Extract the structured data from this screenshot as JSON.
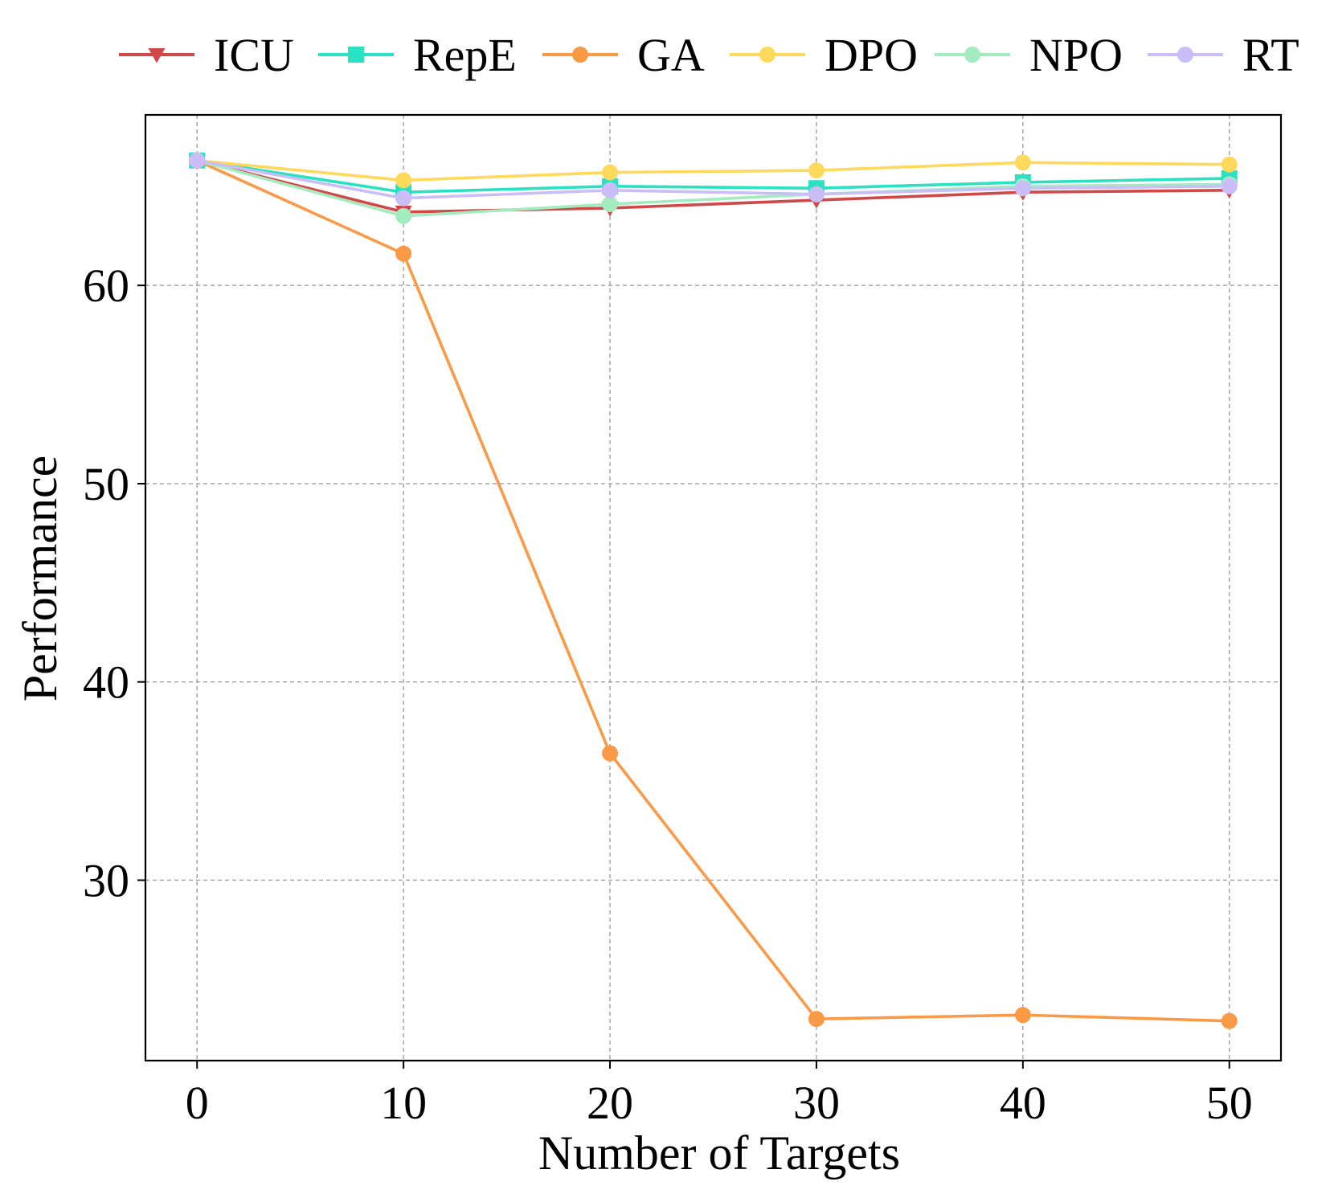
{
  "chart_data": {
    "type": "line",
    "title": "",
    "xlabel": "Number of Targets",
    "ylabel": "Performance",
    "x": [
      0,
      10,
      20,
      30,
      40,
      50
    ],
    "xticks": [
      "0",
      "10",
      "20",
      "30",
      "40",
      "50"
    ],
    "yticks": [
      "30",
      "40",
      "50",
      "60"
    ],
    "xlim": [
      -2.5,
      52.5
    ],
    "ylim": [
      20.9,
      68.6
    ],
    "grid": true,
    "legend_position": "top",
    "series": [
      {
        "name": "ICU",
        "color": "#d04848",
        "marker": "triangle-down",
        "values": [
          66.3,
          63.7,
          63.9,
          64.3,
          64.7,
          64.8
        ]
      },
      {
        "name": "RepE",
        "color": "#28e2c2",
        "marker": "square",
        "values": [
          66.3,
          64.7,
          65.0,
          64.9,
          65.2,
          65.4
        ]
      },
      {
        "name": "GA",
        "color": "#fb9a46",
        "marker": "circle",
        "values": [
          66.3,
          61.6,
          36.4,
          23.0,
          23.2,
          22.9
        ]
      },
      {
        "name": "DPO",
        "color": "#ffd95c",
        "marker": "circle",
        "values": [
          66.3,
          65.3,
          65.7,
          65.8,
          66.2,
          66.1
        ]
      },
      {
        "name": "NPO",
        "color": "#a3ecc0",
        "marker": "circle",
        "values": [
          66.3,
          63.5,
          64.1,
          64.6,
          65.0,
          65.1
        ]
      },
      {
        "name": "RT",
        "color": "#cbbdf7",
        "marker": "circle",
        "values": [
          66.3,
          64.4,
          64.8,
          64.6,
          64.9,
          65.0
        ]
      }
    ]
  }
}
